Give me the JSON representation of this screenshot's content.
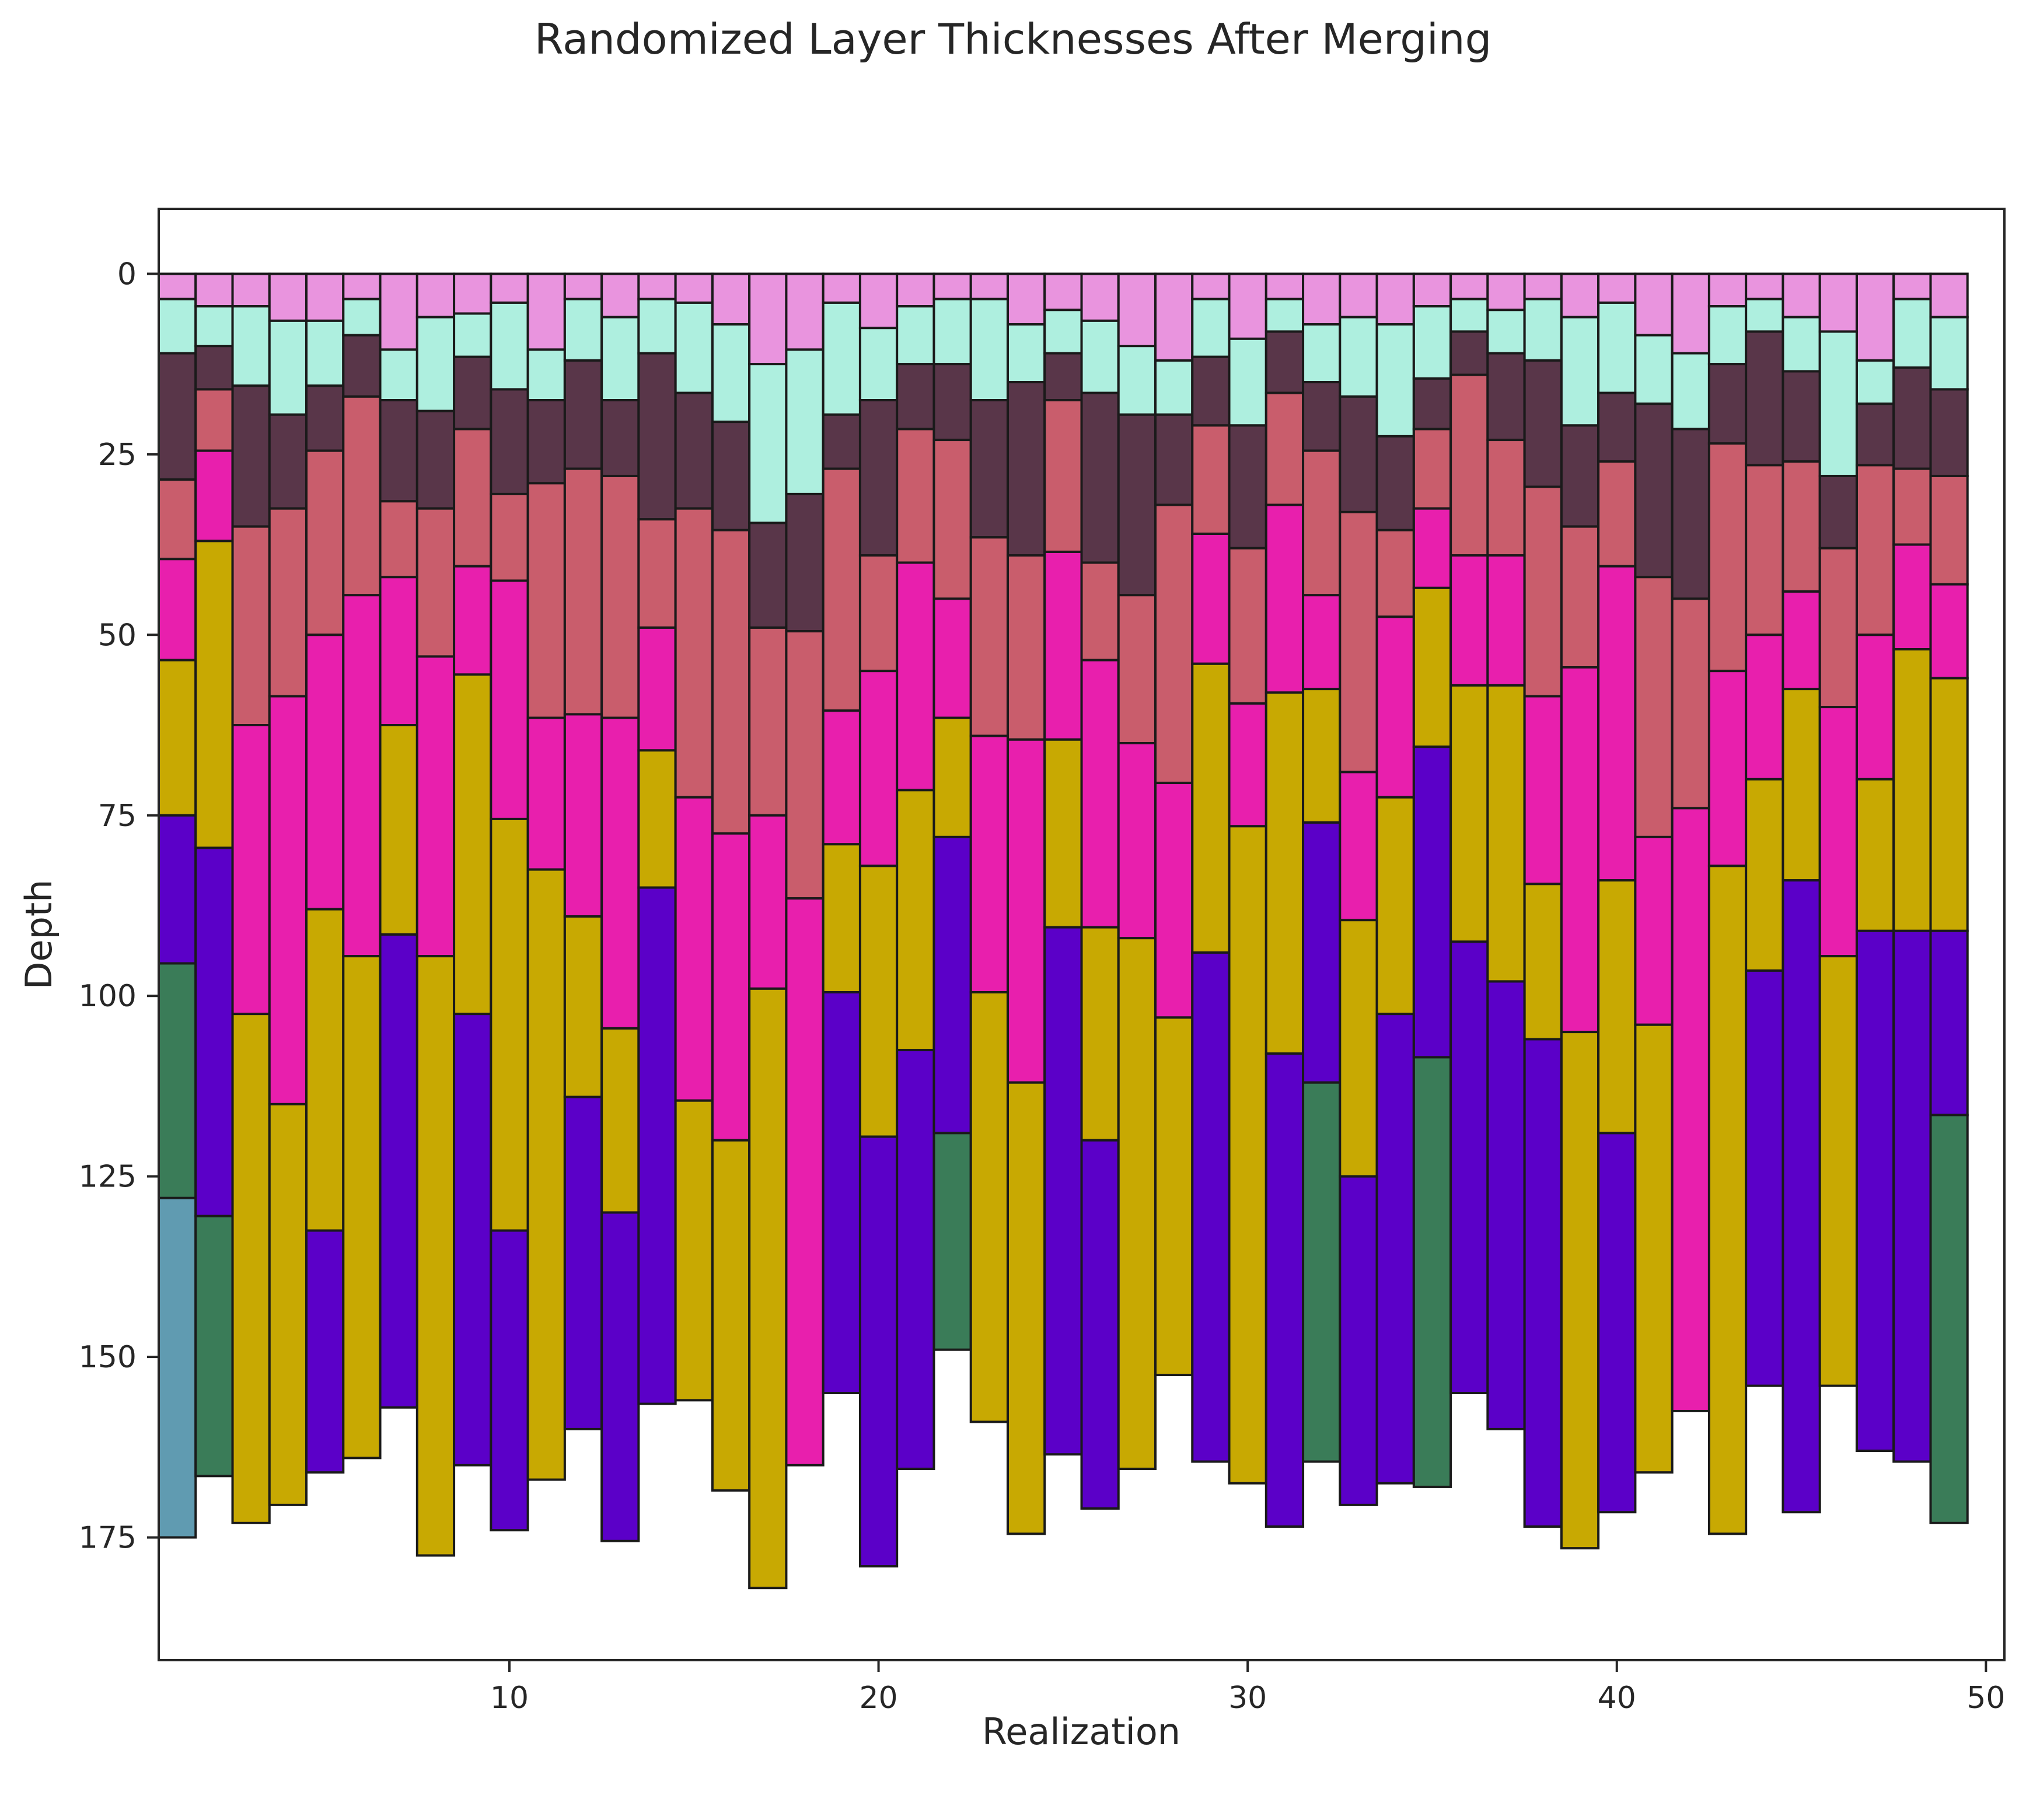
{
  "chart_data": {
    "type": "bar",
    "orientation": "stacked-vertical-depth",
    "title": "Randomized Layer Thicknesses After Merging",
    "xlabel": "Realization",
    "ylabel": "Depth",
    "xlim": [
      0.5,
      50.5
    ],
    "ylim": [
      192,
      -9
    ],
    "y_inverted": true,
    "grid": false,
    "x_ticks": [
      10,
      20,
      30,
      40,
      50
    ],
    "y_ticks": [
      0,
      25,
      50,
      75,
      100,
      125,
      150,
      175
    ],
    "layer_colors": [
      "#e994de",
      "#aeefdf",
      "#593649",
      "#c95d6c",
      "#e81fad",
      "#c8a902",
      "#5b00c8",
      "#3a7c58",
      "#609bb1"
    ],
    "realizations": [
      {
        "x": 1,
        "tops": [
          0,
          3.5,
          11,
          28.5,
          39.5,
          53.5,
          75,
          95.5,
          128
        ],
        "base": 175
      },
      {
        "x": 2,
        "tops": [
          0,
          4.5,
          10,
          16,
          24.5,
          37,
          79.5,
          130.5
        ],
        "base": 166.5
      },
      {
        "x": 3,
        "tops": [
          0,
          4.5,
          15.5,
          35,
          62.5,
          102.5
        ],
        "base": 173
      },
      {
        "x": 4,
        "tops": [
          0,
          6.5,
          19.5,
          32.5,
          58.5,
          115
        ],
        "base": 170.5
      },
      {
        "x": 5,
        "tops": [
          0,
          6.5,
          15.5,
          24.5,
          50,
          88,
          132.5
        ],
        "base": 166
      },
      {
        "x": 6,
        "tops": [
          0,
          3.5,
          8.5,
          17,
          44.5,
          94.5
        ],
        "base": 164
      },
      {
        "x": 7,
        "tops": [
          0,
          10.5,
          17.5,
          31.5,
          42,
          62.5,
          91.5
        ],
        "base": 157
      },
      {
        "x": 8,
        "tops": [
          0,
          6,
          19,
          32.5,
          53,
          94.5
        ],
        "base": 177.5
      },
      {
        "x": 9,
        "tops": [
          0,
          5.5,
          11.5,
          21.5,
          40.5,
          55.5,
          102.5
        ],
        "base": 165
      },
      {
        "x": 10,
        "tops": [
          0,
          4,
          16,
          30.5,
          42.5,
          75.5,
          132.5
        ],
        "base": 174
      },
      {
        "x": 11,
        "tops": [
          0,
          10.5,
          17.5,
          29,
          61.5,
          82.5
        ],
        "base": 167
      },
      {
        "x": 12,
        "tops": [
          0,
          3.5,
          12,
          27,
          61,
          89,
          114
        ],
        "base": 160
      },
      {
        "x": 13,
        "tops": [
          0,
          6,
          17.5,
          28,
          61.5,
          104.5,
          130
        ],
        "base": 175.5
      },
      {
        "x": 14,
        "tops": [
          0,
          3.5,
          11,
          34,
          49,
          66,
          85
        ],
        "base": 156.5
      },
      {
        "x": 15,
        "tops": [
          0,
          4,
          16.5,
          32.5,
          72.5,
          114.5
        ],
        "base": 156
      },
      {
        "x": 16,
        "tops": [
          0,
          7,
          20.5,
          35.5,
          77.5,
          120
        ],
        "base": 168.5
      },
      {
        "x": 17,
        "tops": [
          0,
          12.5,
          34.5,
          49,
          75,
          99
        ],
        "base": 182
      },
      {
        "x": 18,
        "tops": [
          0,
          10.5,
          30.5,
          49.5,
          86.5
        ],
        "base": 165
      },
      {
        "x": 19,
        "tops": [
          0,
          4,
          19.5,
          27,
          60.5,
          79,
          99.5
        ],
        "base": 155
      },
      {
        "x": 20,
        "tops": [
          0,
          7.5,
          17.5,
          39,
          55,
          82,
          119.5
        ],
        "base": 179
      },
      {
        "x": 21,
        "tops": [
          0,
          4.5,
          12.5,
          21.5,
          40,
          71.5,
          107.5
        ],
        "base": 165.5
      },
      {
        "x": 22,
        "tops": [
          0,
          3.5,
          12.5,
          23,
          45,
          61.5,
          78,
          119
        ],
        "base": 149
      },
      {
        "x": 23,
        "tops": [
          0,
          3.5,
          17.5,
          36.5,
          64,
          99.5
        ],
        "base": 159
      },
      {
        "x": 24,
        "tops": [
          0,
          7,
          15,
          39,
          64.5,
          112
        ],
        "base": 174.5
      },
      {
        "x": 25,
        "tops": [
          0,
          5,
          11,
          17.5,
          38.5,
          64.5,
          90.5
        ],
        "base": 163.5
      },
      {
        "x": 26,
        "tops": [
          0,
          6.5,
          16.5,
          40,
          53.5,
          90.5,
          120
        ],
        "base": 171
      },
      {
        "x": 27,
        "tops": [
          0,
          10,
          19.5,
          44.5,
          65,
          92
        ],
        "base": 165.5
      },
      {
        "x": 28,
        "tops": [
          0,
          12,
          19.5,
          32,
          70.5,
          103
        ],
        "base": 152.5
      },
      {
        "x": 29,
        "tops": [
          0,
          3.5,
          11.5,
          21,
          36,
          54,
          94
        ],
        "base": 164.5
      },
      {
        "x": 30,
        "tops": [
          0,
          9,
          21,
          38,
          59.5,
          76.5
        ],
        "base": 167.5
      },
      {
        "x": 31,
        "tops": [
          0,
          3.5,
          8,
          16.5,
          32,
          58,
          108
        ],
        "base": 173.5
      },
      {
        "x": 32,
        "tops": [
          0,
          7,
          15,
          24.5,
          44.5,
          57.5,
          76,
          112
        ],
        "base": 164.5
      },
      {
        "x": 33,
        "tops": [
          0,
          6,
          17,
          33,
          69,
          89.5,
          125
        ],
        "base": 170.5
      },
      {
        "x": 34,
        "tops": [
          0,
          7,
          22.5,
          35.5,
          47.5,
          72.5,
          102.5
        ],
        "base": 167.5
      },
      {
        "x": 35,
        "tops": [
          0,
          4.5,
          14.5,
          21.5,
          32.5,
          43.5,
          65.5,
          108.5
        ],
        "base": 168
      },
      {
        "x": 36,
        "tops": [
          0,
          3.5,
          8,
          14,
          39,
          57,
          92.5
        ],
        "base": 155
      },
      {
        "x": 37,
        "tops": [
          0,
          5,
          11,
          23,
          39,
          57,
          98
        ],
        "base": 160
      },
      {
        "x": 38,
        "tops": [
          0,
          3.5,
          12,
          29.5,
          58.5,
          84.5,
          106
        ],
        "base": 173.5
      },
      {
        "x": 39,
        "tops": [
          0,
          6,
          21,
          35,
          54.5,
          105
        ],
        "base": 176.5
      },
      {
        "x": 40,
        "tops": [
          0,
          4,
          16.5,
          26,
          40.5,
          84,
          119
        ],
        "base": 171.5
      },
      {
        "x": 41,
        "tops": [
          0,
          8.5,
          18,
          42,
          78,
          104
        ],
        "base": 166
      },
      {
        "x": 42,
        "tops": [
          0,
          11,
          21.5,
          45,
          74
        ],
        "base": 157.5
      },
      {
        "x": 43,
        "tops": [
          0,
          4.5,
          12.5,
          23.5,
          55,
          82
        ],
        "base": 174.5
      },
      {
        "x": 44,
        "tops": [
          0,
          3.5,
          8,
          26.5,
          50,
          70,
          96.5
        ],
        "base": 154
      },
      {
        "x": 45,
        "tops": [
          0,
          6,
          13.5,
          26,
          44,
          57.5,
          84
        ],
        "base": 171.5
      },
      {
        "x": 46,
        "tops": [
          0,
          8,
          28,
          38,
          60,
          94.5
        ],
        "base": 154
      },
      {
        "x": 47,
        "tops": [
          0,
          12,
          18,
          26.5,
          50,
          70,
          91
        ],
        "base": 163
      },
      {
        "x": 48,
        "tops": [
          0,
          3.5,
          13,
          27,
          37.5,
          52,
          91
        ],
        "base": 164.5
      },
      {
        "x": 49,
        "tops": [
          0,
          6,
          16,
          28,
          43,
          56,
          91,
          116.5
        ],
        "base": 173
      }
    ]
  }
}
